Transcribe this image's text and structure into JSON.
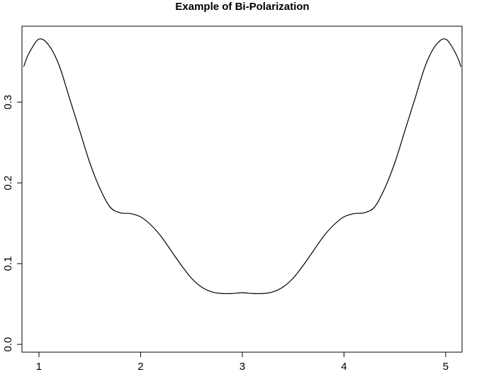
{
  "chart_data": {
    "type": "line",
    "title": "Example of Bi-Polarization",
    "x": [
      0.85,
      0.9,
      1.0,
      1.1,
      1.2,
      1.3,
      1.4,
      1.5,
      1.6,
      1.7,
      1.8,
      1.9,
      2.0,
      2.1,
      2.2,
      2.3,
      2.4,
      2.5,
      2.6,
      2.7,
      2.8,
      2.9,
      3.0,
      3.1,
      3.2,
      3.3,
      3.4,
      3.5,
      3.6,
      3.7,
      3.8,
      3.9,
      4.0,
      4.1,
      4.2,
      4.3,
      4.4,
      4.5,
      4.6,
      4.7,
      4.8,
      4.9,
      5.0,
      5.1,
      5.15
    ],
    "series": [
      {
        "color": "#000000",
        "values": [
          0.344,
          0.36,
          0.378,
          0.37,
          0.345,
          0.305,
          0.265,
          0.225,
          0.193,
          0.17,
          0.163,
          0.162,
          0.158,
          0.148,
          0.134,
          0.116,
          0.098,
          0.082,
          0.071,
          0.065,
          0.063,
          0.063,
          0.064,
          0.063,
          0.063,
          0.065,
          0.071,
          0.082,
          0.098,
          0.116,
          0.134,
          0.148,
          0.158,
          0.162,
          0.163,
          0.17,
          0.193,
          0.225,
          0.265,
          0.305,
          0.345,
          0.37,
          0.378,
          0.36,
          0.344
        ]
      }
    ],
    "xlim": [
      0.833,
      5.161
    ],
    "ylim": [
      -0.0096,
      0.394
    ],
    "xticks": [
      1,
      2,
      3,
      4,
      5
    ],
    "yticks": [
      {
        "value": 0,
        "label": "0.0"
      },
      0.1,
      0.2,
      0.3
    ]
  }
}
